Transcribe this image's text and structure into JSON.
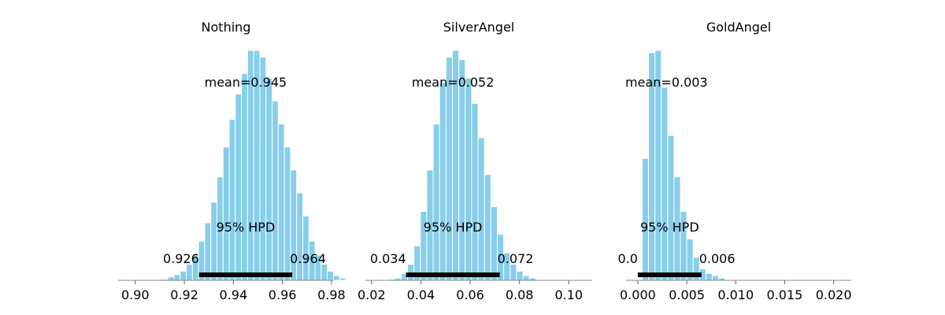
{
  "chart_data": [
    {
      "type": "bar",
      "title": "Nothing",
      "mean_label": "mean=0.945",
      "hpd_label": "95% HPD",
      "hpd_low_label": "0.926",
      "hpd_high_label": "0.964",
      "hpd": [
        0.926,
        0.964
      ],
      "xlim": [
        0.893,
        0.981
      ],
      "xticks": [
        0.9,
        0.92,
        0.94,
        0.96,
        0.98
      ],
      "xtick_labels": [
        "0.90",
        "0.92",
        "0.94",
        "0.96",
        "0.98"
      ],
      "bins": {
        "start": 0.9108,
        "width": 0.0025,
        "heights": [
          0.5,
          1.5,
          2.5,
          4,
          7,
          11,
          17,
          25,
          34,
          45,
          58,
          70,
          81,
          90,
          100,
          100,
          97,
          88,
          78,
          68,
          58,
          48,
          38,
          28,
          17,
          11,
          7,
          4,
          2,
          1
        ]
      }
    },
    {
      "type": "bar",
      "title": "SilverAngel",
      "mean_label": "mean=0.052",
      "hpd_label": "95% HPD",
      "hpd_low_label": "0.034",
      "hpd_high_label": "0.072",
      "hpd": [
        0.034,
        0.072
      ],
      "xlim": [
        0.0175,
        0.1095
      ],
      "xticks": [
        0.02,
        0.04,
        0.06,
        0.08,
        0.1
      ],
      "xtick_labels": [
        "0.02",
        "0.04",
        "0.06",
        "0.08",
        "0.10"
      ],
      "bins": {
        "start": 0.0268,
        "width": 0.0026,
        "heights": [
          0.5,
          1,
          3,
          7,
          15,
          30,
          48,
          68,
          86,
          97,
          100,
          96,
          88,
          77,
          62,
          46,
          32,
          20,
          12,
          7,
          4,
          2,
          1
        ]
      }
    },
    {
      "type": "bar",
      "title": "GoldAngel",
      "mean_label": "mean=0.003",
      "hpd_label": "95% HPD",
      "hpd_low_label": "0.0",
      "hpd_high_label": "0.006",
      "hpd": [
        0.0,
        0.0065
      ],
      "xlim": [
        -0.0012,
        0.0218
      ],
      "xticks": [
        0.0,
        0.005,
        0.01,
        0.015,
        0.02
      ],
      "xtick_labels": [
        "0.000",
        "0.005",
        "0.010",
        "0.015",
        "0.020"
      ],
      "bins": {
        "start": 0.00045,
        "width": 0.00065,
        "heights": [
          53,
          99,
          100,
          84,
          63,
          45,
          30,
          18,
          10,
          5,
          3,
          2,
          1,
          0.3
        ]
      }
    }
  ]
}
